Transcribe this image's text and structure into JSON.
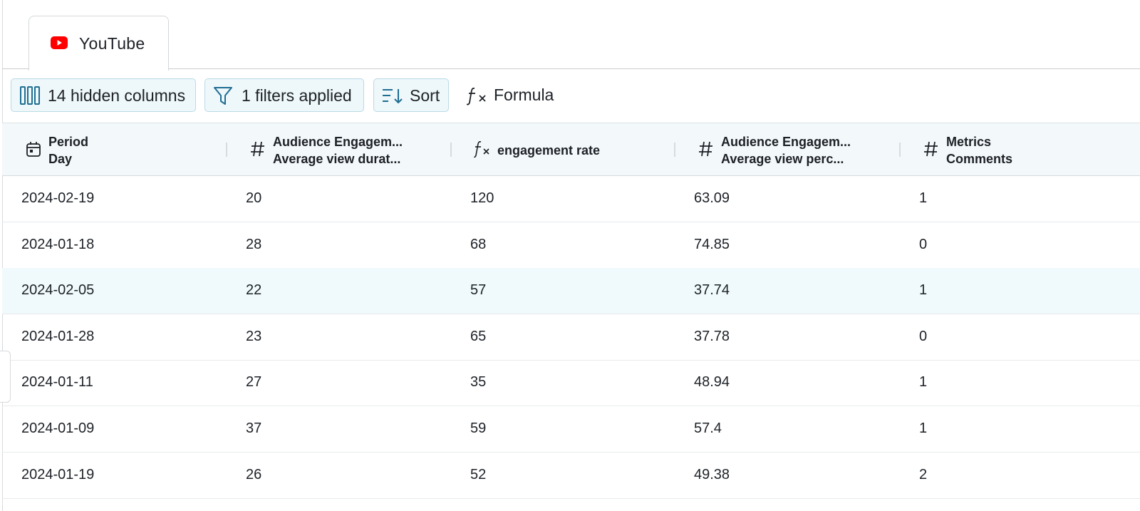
{
  "tab": {
    "label": "YouTube"
  },
  "toolbar": {
    "hidden_columns": "14 hidden columns",
    "filters": "1 filters applied",
    "sort": "Sort",
    "formula": "Formula"
  },
  "table": {
    "headers": [
      [
        "Period",
        "Day"
      ],
      [
        "Audience Engagem...",
        "Average view durat..."
      ],
      [
        "engagement rate"
      ],
      [
        "Audience Engagem...",
        "Average view perc..."
      ],
      [
        "Metrics",
        "Comments"
      ]
    ],
    "rows": [
      [
        "2024-02-19",
        "20",
        "120",
        "63.09",
        "1"
      ],
      [
        "2024-01-18",
        "28",
        "68",
        "74.85",
        "0"
      ],
      [
        "2024-02-05",
        "22",
        "57",
        "37.74",
        "1"
      ],
      [
        "2024-01-28",
        "23",
        "65",
        "37.78",
        "0"
      ],
      [
        "2024-01-11",
        "27",
        "35",
        "48.94",
        "1"
      ],
      [
        "2024-01-09",
        "37",
        "59",
        "57.4",
        "1"
      ],
      [
        "2024-01-19",
        "26",
        "52",
        "49.38",
        "2"
      ]
    ]
  }
}
